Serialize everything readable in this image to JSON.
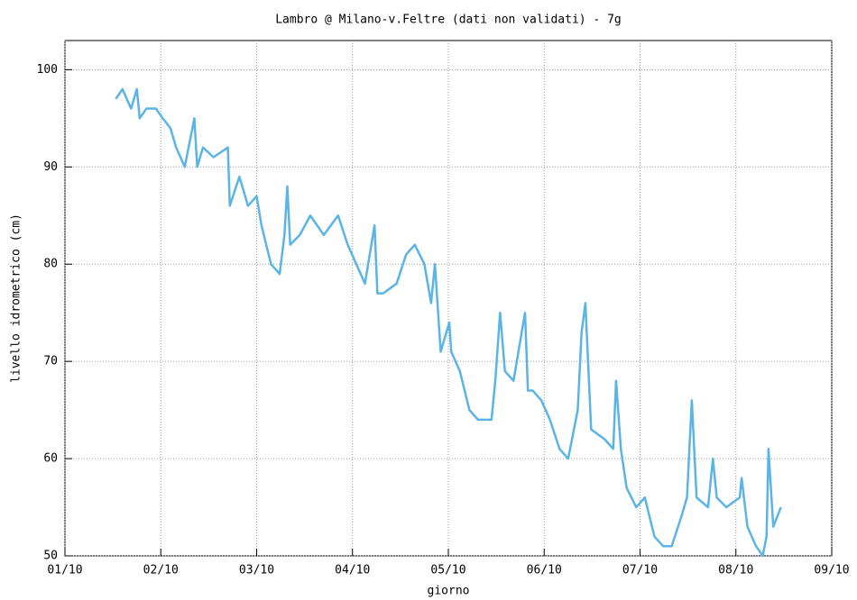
{
  "chart_data": {
    "type": "line",
    "title": "Lambro @ Milano-v.Feltre (dati non validati) - 7g",
    "x_label": "giorno",
    "y_label": "livello idrometrico (cm)",
    "x": [
      1.53,
      1.6,
      1.69,
      1.75,
      1.78,
      1.85,
      1.95,
      2.02,
      2.1,
      2.16,
      2.25,
      2.35,
      2.38,
      2.44,
      2.55,
      2.7,
      2.72,
      2.82,
      2.91,
      3.0,
      3.05,
      3.15,
      3.24,
      3.29,
      3.32,
      3.35,
      3.45,
      3.56,
      3.7,
      3.85,
      3.95,
      4.04,
      4.13,
      4.23,
      4.26,
      4.32,
      4.46,
      4.56,
      4.65,
      4.75,
      4.82,
      4.86,
      4.92,
      5.01,
      5.03,
      5.12,
      5.17,
      5.22,
      5.31,
      5.45,
      5.49,
      5.54,
      5.59,
      5.68,
      5.8,
      5.83,
      5.88,
      5.97,
      6.06,
      6.16,
      6.25,
      6.35,
      6.39,
      6.43,
      6.49,
      6.63,
      6.72,
      6.75,
      6.8,
      6.86,
      6.96,
      7.05,
      7.15,
      7.24,
      7.33,
      7.43,
      7.49,
      7.54,
      7.59,
      7.71,
      7.76,
      7.8,
      7.9,
      8.04,
      8.06,
      8.12,
      8.21,
      8.28,
      8.32,
      8.34,
      8.39,
      8.47
    ],
    "series": [
      {
        "name": "livello",
        "color": "#5ab4e5",
        "values": [
          97,
          98,
          96,
          98,
          95,
          96,
          96,
          95,
          94,
          92,
          90,
          95,
          90,
          92,
          91,
          92,
          86,
          89,
          86,
          87,
          84,
          80,
          79,
          83,
          88,
          82,
          83,
          85,
          83,
          85,
          82,
          80,
          78,
          84,
          77,
          77,
          78,
          81,
          82,
          80,
          76,
          80,
          71,
          74,
          71,
          69,
          67,
          65,
          64,
          64,
          68,
          75,
          69,
          68,
          75,
          67,
          67,
          66,
          64,
          61,
          60,
          65,
          73,
          76,
          63,
          62,
          61,
          68,
          61,
          57,
          55,
          56,
          52,
          51,
          51,
          54,
          56,
          66,
          56,
          55,
          60,
          56,
          55,
          56,
          58,
          53,
          51,
          50,
          52,
          61,
          53,
          55
        ]
      }
    ],
    "xlim": [
      1,
      9
    ],
    "xticks": [
      {
        "value": 1,
        "label": "01/10"
      },
      {
        "value": 2,
        "label": "02/10"
      },
      {
        "value": 3,
        "label": "03/10"
      },
      {
        "value": 4,
        "label": "04/10"
      },
      {
        "value": 5,
        "label": "05/10"
      },
      {
        "value": 6,
        "label": "06/10"
      },
      {
        "value": 7,
        "label": "07/10"
      },
      {
        "value": 8,
        "label": "08/10"
      },
      {
        "value": 9,
        "label": "09/10"
      }
    ],
    "ylim": [
      50,
      103
    ],
    "yticks": [
      50,
      60,
      70,
      80,
      90,
      100
    ],
    "grid": true
  }
}
